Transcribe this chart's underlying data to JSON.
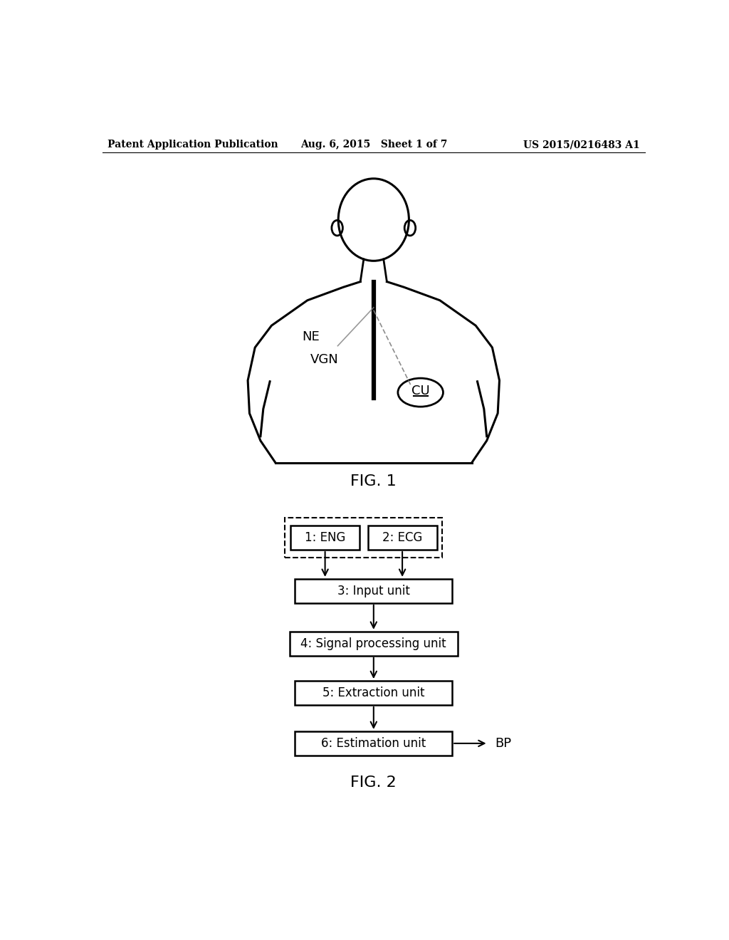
{
  "background_color": "#ffffff",
  "header_left": "Patent Application Publication",
  "header_center": "Aug. 6, 2015   Sheet 1 of 7",
  "header_right": "US 2015/0216483 A1",
  "fig1_label": "FIG. 1",
  "fig2_label": "FIG. 2",
  "label_NE": "NE",
  "label_VGN": "VGN",
  "label_CU": "CU",
  "box1_text": "1: ENG",
  "box2_text": "2: ECG",
  "box3_text": "3: Input unit",
  "box4_text": "4: Signal processing unit",
  "box5_text": "5: Extraction unit",
  "box6_text": "6: Estimation unit",
  "bp_label": "BP"
}
